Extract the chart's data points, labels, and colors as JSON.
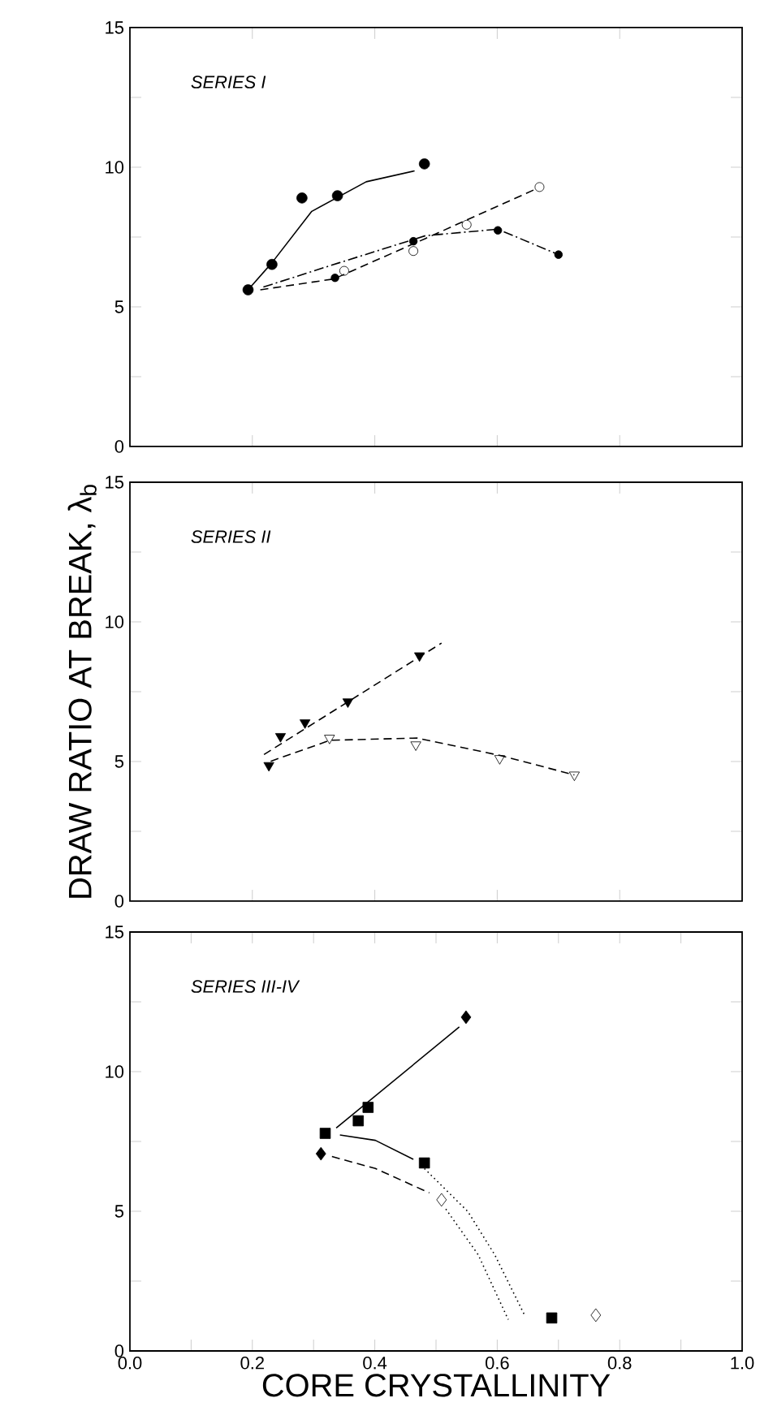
{
  "chart_data": [
    {
      "type": "line",
      "title": "SERIES I",
      "xlim": [
        0,
        1
      ],
      "ylim": [
        0,
        15
      ],
      "xticks": [
        0,
        0.2,
        0.4,
        0.6,
        0.8,
        1
      ],
      "yticks": [
        0,
        {
          "value": 2.5,
          "label": null
        },
        5,
        {
          "value": 7.5,
          "label": null
        },
        10,
        {
          "value": 12.5,
          "label": null
        },
        15
      ],
      "tick_labels": "y",
      "series": [
        {
          "line_style": "dashed",
          "color": "#000000",
          "x": [
            0.213,
            0.333,
            0.483,
            0.66
          ],
          "values": [
            5.61,
            6.0,
            7.45,
            9.19
          ]
        },
        {
          "line_style": "dashdot",
          "color": "#000000",
          "x": [
            0.218,
            0.342,
            0.483,
            0.601,
            0.7
          ],
          "values": [
            5.71,
            6.58,
            7.55,
            7.78,
            6.87
          ]
        },
        {
          "line_style": "solid",
          "color": "#000000",
          "x": [
            0.193,
            0.232,
            0.297,
            0.386,
            0.465
          ],
          "values": [
            5.61,
            6.58,
            8.42,
            9.48,
            9.87
          ]
        },
        {
          "type": "scatter",
          "marker": "circle-open",
          "color": "#000000",
          "x": [
            0.35,
            0.463,
            0.55,
            0.669
          ],
          "values": [
            6.29,
            7.0,
            7.94,
            9.29
          ]
        },
        {
          "type": "scatter",
          "marker": "circle-small",
          "color": "#000000",
          "x": [
            0.335,
            0.463,
            0.601,
            0.7
          ],
          "values": [
            6.04,
            7.35,
            7.74,
            6.87
          ]
        },
        {
          "type": "scatter",
          "marker": "circle",
          "color": "#000000",
          "x": [
            0.193,
            0.232,
            0.281,
            0.339,
            0.481
          ],
          "values": [
            5.61,
            6.52,
            8.9,
            8.98,
            10.12
          ]
        }
      ]
    },
    {
      "type": "line",
      "title": "SERIES II",
      "ylabel": "DRAW RATIO AT BREAK, λ$_{b}$",
      "xlim": [
        0,
        1
      ],
      "ylim": [
        0,
        15
      ],
      "xticks": [
        0,
        0.2,
        0.4,
        0.6,
        0.8,
        1
      ],
      "yticks": [
        0,
        {
          "value": 2.5,
          "label": null
        },
        5,
        {
          "value": 7.5,
          "label": null
        },
        10,
        {
          "value": 12.5,
          "label": null
        },
        15
      ],
      "tick_labels": "y",
      "series": [
        {
          "line_style": "dashed",
          "color": "#000000",
          "x": [
            0.219,
            0.509
          ],
          "values": [
            5.25,
            9.24
          ]
        },
        {
          "line_style": "dashed",
          "color": "#000000",
          "x": [
            0.23,
            0.327,
            0.469,
            0.606,
            0.726
          ],
          "values": [
            5.01,
            5.76,
            5.84,
            5.21,
            4.52
          ]
        },
        {
          "type": "scatter",
          "marker": "triangle",
          "color": "#000000",
          "x": [
            0.227,
            0.246,
            0.286,
            0.356,
            0.473
          ],
          "values": [
            4.86,
            5.9,
            6.39,
            7.14,
            8.79
          ]
        },
        {
          "type": "scatter",
          "marker": "triangle-open",
          "color": "#000000",
          "x": [
            0.326,
            0.467,
            0.604,
            0.726
          ],
          "values": [
            5.84,
            5.6,
            5.11,
            4.52
          ]
        }
      ]
    },
    {
      "type": "line",
      "title": "SERIES III-IV",
      "xlabel": "CORE CRYSTALLINITY",
      "xlim": [
        0,
        1
      ],
      "ylim": [
        0,
        15
      ],
      "xticks": [
        {
          "value": 0,
          "label": "0.0"
        },
        {
          "value": 0.1,
          "label": null
        },
        {
          "value": 0.2,
          "label": "0.2"
        },
        {
          "value": 0.3,
          "label": null
        },
        {
          "value": 0.4,
          "label": "0.4"
        },
        {
          "value": 0.5,
          "label": null
        },
        {
          "value": 0.6,
          "label": "0.6"
        },
        {
          "value": 0.7,
          "label": null
        },
        {
          "value": 0.8,
          "label": "0.8"
        },
        {
          "value": 0.9,
          "label": null
        },
        {
          "value": 1,
          "label": "1.0"
        }
      ],
      "yticks": [
        0,
        {
          "value": 2.5,
          "label": null
        },
        5,
        {
          "value": 7.5,
          "label": null
        },
        10,
        {
          "value": 12.5,
          "label": null
        },
        15
      ],
      "series": [
        {
          "line_style": "solid",
          "color": "#000000",
          "x": [
            0.337,
            0.538
          ],
          "values": [
            7.98,
            11.6
          ]
        },
        {
          "line_style": "solid",
          "color": "#000000",
          "x": [
            0.343,
            0.401,
            0.463
          ],
          "values": [
            7.73,
            7.54,
            6.86
          ]
        },
        {
          "line_style": "dotted",
          "color": "#000000",
          "x": [
            0.481,
            0.552,
            0.596,
            0.644
          ],
          "values": [
            6.53,
            4.99,
            3.44,
            1.31
          ]
        },
        {
          "line_style": "dashed",
          "color": "#000000",
          "x": [
            0.33,
            0.401,
            0.489
          ],
          "values": [
            6.96,
            6.53,
            5.66
          ]
        },
        {
          "line_style": "dotted",
          "color": "#000000",
          "x": [
            0.516,
            0.569,
            0.618
          ],
          "values": [
            5.08,
            3.44,
            1.12
          ]
        },
        {
          "type": "scatter",
          "marker": "diamond",
          "color": "#000000",
          "x": [
            0.312,
            0.549
          ],
          "values": [
            7.06,
            11.95
          ]
        },
        {
          "type": "scatter",
          "marker": "square",
          "color": "#000000",
          "x": [
            0.319,
            0.373,
            0.389,
            0.481,
            0.689
          ],
          "values": [
            7.79,
            8.24,
            8.72,
            6.73,
            1.18
          ]
        },
        {
          "type": "scatter",
          "marker": "diamond-open",
          "color": "#000000",
          "x": [
            0.509,
            0.761
          ],
          "values": [
            5.41,
            1.28
          ]
        }
      ]
    }
  ]
}
